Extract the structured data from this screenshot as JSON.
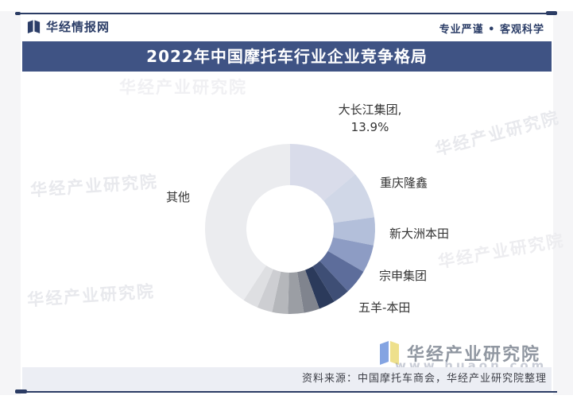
{
  "header": {
    "brand": "华经情报网",
    "slogan": "专业严谨 • 客观科学"
  },
  "title": "2022年中国摩托车行业企业竞争格局",
  "chart_data": {
    "type": "pie",
    "donut": true,
    "title": "2022年中国摩托车行业企业竞争格局",
    "start_angle_deg": 0,
    "inner_radius_ratio": 0.51,
    "legend_position": "outside-callouts",
    "slices": [
      {
        "label": "大长江集团",
        "value": 13.9,
        "color": "#d9dcea"
      },
      {
        "label": "重庆隆鑫",
        "value": 8.9,
        "color": "#d0d7e7"
      },
      {
        "label": "新大洲本田",
        "value": 5.3,
        "color": "#b3bfda"
      },
      {
        "label": "宗申集团",
        "value": 5.3,
        "color": "#8d9cc4"
      },
      {
        "label": "五羊-本田",
        "value": 4.7,
        "color": "#5d6d9b"
      },
      {
        "label": "",
        "value": 3.2,
        "color": "#3e4e75"
      },
      {
        "label": "",
        "value": 3.1,
        "color": "#2b3a5b"
      },
      {
        "label": "",
        "value": 3.0,
        "color": "#80848e"
      },
      {
        "label": "",
        "value": 3.0,
        "color": "#9b9ea4"
      },
      {
        "label": "",
        "value": 3.0,
        "color": "#b5b7bb"
      },
      {
        "label": "",
        "value": 2.9,
        "color": "#cdced2"
      },
      {
        "label": "",
        "value": 2.9,
        "color": "#dedfe2"
      },
      {
        "label": "其他",
        "value": 40.8,
        "color": "#ebecef"
      }
    ]
  },
  "callouts": {
    "dachangjiang_line1": "大长江集团,",
    "dachangjiang_line2": "13.9%",
    "chongqing_longxin": "重庆隆鑫",
    "xindazhou_bentian": "新大洲本田",
    "zongshen_jituan": "宗申集团",
    "wuyang_bentian": "五羊-本田",
    "qita": "其他"
  },
  "watermark": {
    "text": "华经产业研究院",
    "url": "www.huaon.com"
  },
  "footer": {
    "source": "资料来源：中国摩托车商会，华经产业研究院整理",
    "brand": "华经产业研究院"
  }
}
